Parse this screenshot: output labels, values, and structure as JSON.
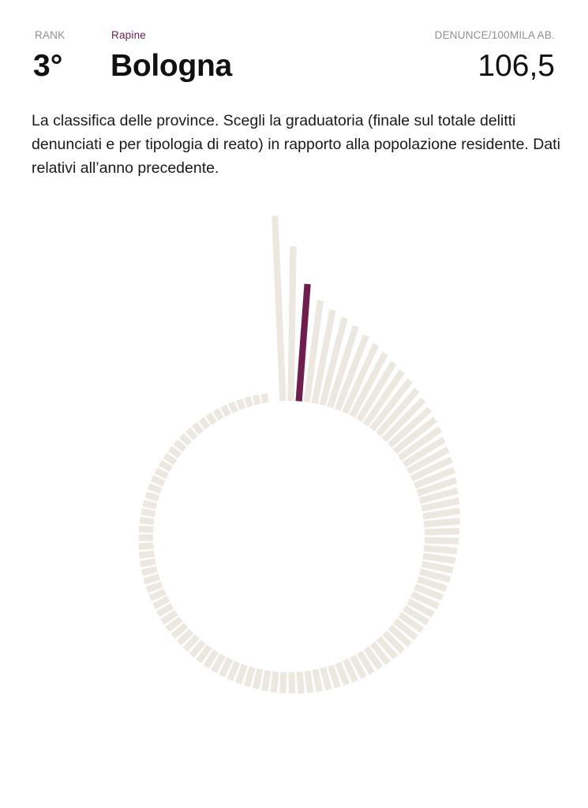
{
  "header": {
    "rank_label": "RANK",
    "category_label": "Rapine",
    "metric_label": "DENUNCE/100MILA AB.",
    "rank_value": "3°",
    "province_name": "Bologna",
    "metric_value": "106,5"
  },
  "description": "La classifica delle province. Scegli la graduatoria (finale sul totale delitti denunciati e per tipologia di reato) in rapporto alla popolazione residente. Dati relativi all’anno precedente.",
  "colors": {
    "accent": "#6e1d4f",
    "bar": "#ece7df",
    "text": "#111111",
    "muted": "#8f8f8f"
  },
  "chart_data": {
    "type": "bar",
    "layout": "radial",
    "bar_count": 106,
    "selected_rank": 3,
    "selected_value": 106.5,
    "values": [
      168.0,
      140.0,
      106.5,
      93.0,
      86.0,
      81.5,
      77.0,
      72.0,
      68.0,
      64.5,
      61.0,
      58.5,
      56.0,
      53.5,
      51.0,
      49.0,
      47.0,
      45.0,
      43.0,
      41.5,
      40.0,
      38.5,
      37.0,
      35.5,
      34.5,
      33.5,
      32.5,
      31.5,
      30.8,
      30.0,
      29.3,
      28.6,
      28.0,
      27.4,
      26.8,
      26.2,
      25.6,
      25.1,
      24.6,
      24.2,
      23.8,
      23.4,
      23.0,
      22.6,
      22.2,
      21.9,
      21.6,
      21.3,
      21.0,
      20.7,
      20.4,
      20.1,
      19.8,
      19.5,
      19.2,
      19.0,
      18.7,
      18.4,
      18.2,
      17.9,
      17.7,
      17.4,
      17.2,
      16.9,
      16.7,
      16.5,
      16.3,
      16.0,
      15.8,
      15.6,
      15.4,
      15.2,
      15.0,
      14.8,
      14.6,
      14.4,
      14.2,
      14.0,
      13.8,
      13.6,
      13.4,
      13.2,
      13.0,
      12.8,
      12.6,
      12.4,
      12.2,
      12.0,
      11.8,
      11.6,
      11.4,
      11.2,
      11.0,
      10.8,
      10.6,
      10.4,
      10.2,
      10.0,
      9.8,
      9.6,
      9.4,
      9.2,
      9.0,
      8.8,
      8.6,
      8.4
    ]
  }
}
